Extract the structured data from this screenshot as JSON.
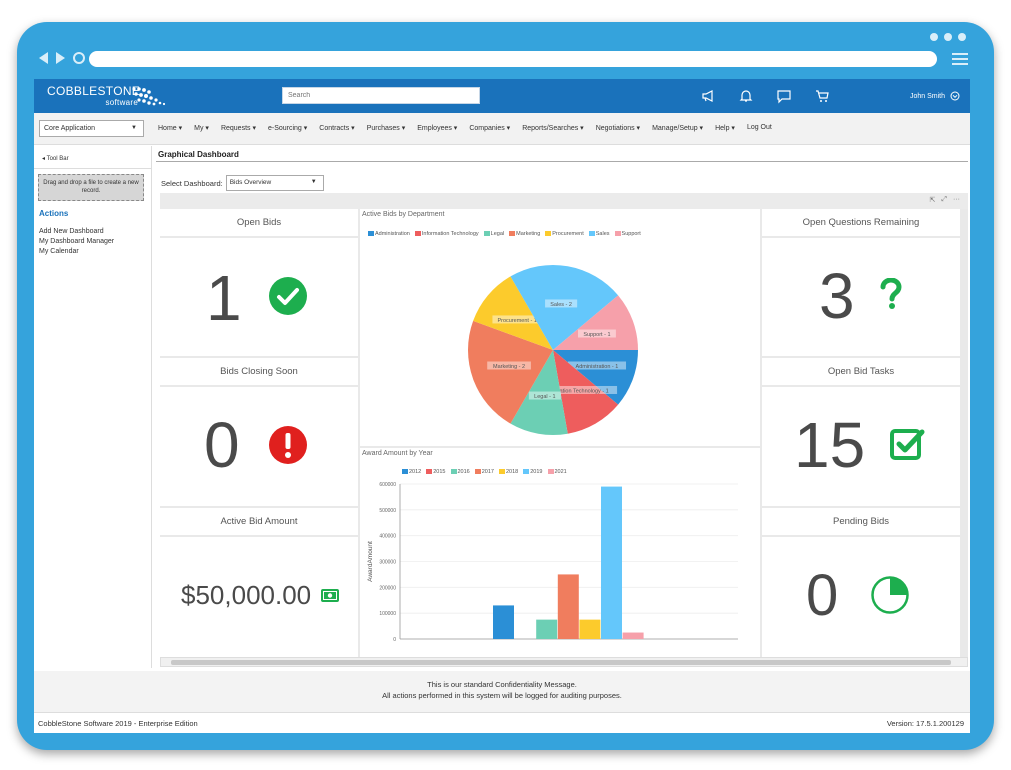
{
  "brand": {
    "name": "COBBLESTONE",
    "sub": "software"
  },
  "search": {
    "placeholder": "Search"
  },
  "user": {
    "name": "John Smith"
  },
  "app_selector": {
    "value": "Core Application"
  },
  "menu": [
    "Home ▾",
    "My ▾",
    "Requests ▾",
    "e-Sourcing ▾",
    "Contracts ▾",
    "Purchases ▾",
    "Employees ▾",
    "Companies ▾",
    "Reports/Searches ▾",
    "Negotiations ▾",
    "Manage/Setup ▾",
    "Help ▾",
    "Log Out"
  ],
  "sidebar": {
    "toolbar": "◂ Tool Bar",
    "dropzone": "Drag and drop a file to create a new record.",
    "actions_heading": "Actions",
    "actions": [
      "Add New Dashboard",
      "My Dashboard Manager",
      "My Calendar"
    ]
  },
  "main": {
    "title": "Graphical Dashboard",
    "select_label": "Select Dashboard:",
    "select_value": "Bids Overview"
  },
  "tiles": {
    "open_bids": {
      "title": "Open Bids",
      "value": "1"
    },
    "bids_closing": {
      "title": "Bids Closing Soon",
      "value": "0"
    },
    "active_amount": {
      "title": "Active Bid Amount",
      "value": "$50,000.00"
    },
    "open_questions": {
      "title": "Open Questions Remaining",
      "value": "3"
    },
    "open_tasks": {
      "title": "Open Bid Tasks",
      "value": "15"
    },
    "pending_bids": {
      "title": "Pending Bids",
      "value": "0"
    }
  },
  "chart_data": [
    {
      "type": "pie",
      "title": "Active Bids by Department",
      "labels": [
        "Administration",
        "Information Technology",
        "Legal",
        "Marketing",
        "Procurement",
        "Sales",
        "Support"
      ],
      "slice_labels": [
        "Administration - 1",
        "Information Technology - 1",
        "Legal - 1",
        "Marketing - 2",
        "Procurement - 1",
        "Sales - 2",
        "Support - 1"
      ],
      "values": [
        1,
        1,
        1,
        2,
        1,
        2,
        1
      ],
      "colors": [
        "#2b8fd6",
        "#ee5d5d",
        "#6ccfb4",
        "#f07d5e",
        "#fccb2c",
        "#64c7fb",
        "#f6a0aa"
      ]
    },
    {
      "type": "bar",
      "title": "Award Amount by Year",
      "ylabel": "AwardAmount",
      "ylim": [
        0,
        600000
      ],
      "yticks": [
        "0",
        "100000",
        "200000",
        "300000",
        "400000",
        "500000",
        "600000"
      ],
      "series": [
        {
          "name": "2012",
          "value": 130000,
          "color": "#2b8fd6"
        },
        {
          "name": "2015",
          "value": 0,
          "color": "#ee5d5d"
        },
        {
          "name": "2016",
          "value": 75000,
          "color": "#6ccfb4"
        },
        {
          "name": "2017",
          "value": 250000,
          "color": "#f07d5e"
        },
        {
          "name": "2018",
          "value": 75000,
          "color": "#fccb2c"
        },
        {
          "name": "2019",
          "value": 590000,
          "color": "#64c7fb"
        },
        {
          "name": "2021",
          "value": 25000,
          "color": "#f6a0aa"
        }
      ]
    }
  ],
  "footer": {
    "line1": "This is our standard Confidentiality Message.",
    "line2": "All actions performed in this system will be logged for auditing purposes.",
    "left": "CobbleStone Software 2019 - Enterprise Edition",
    "right": "Version: 17.5.1.200129"
  },
  "colors": {
    "accent": "#1a72bb",
    "frame": "#35a3dc",
    "success": "#1dae4e",
    "danger": "#e0201e"
  }
}
